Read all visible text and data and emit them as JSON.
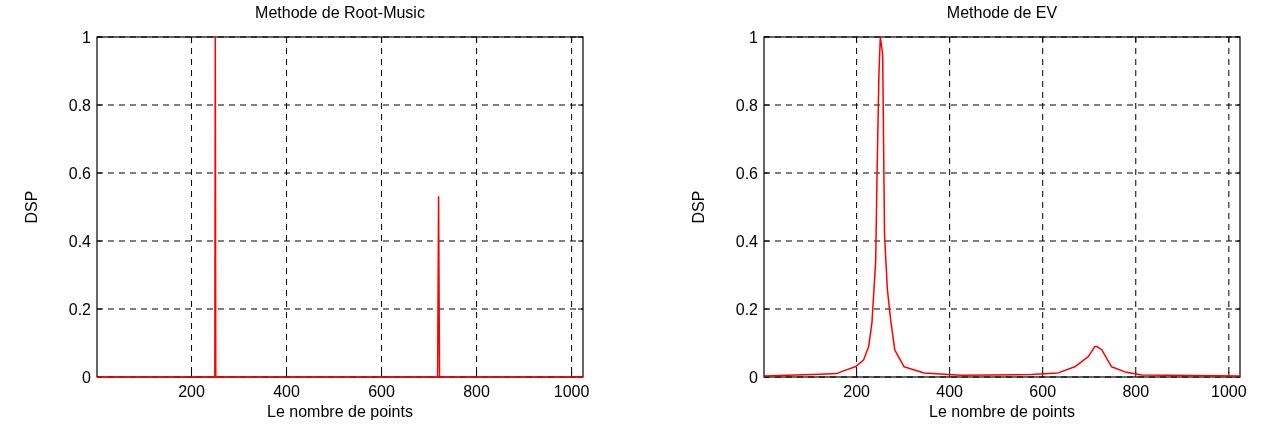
{
  "chart_data": [
    {
      "type": "line",
      "title": "Methode de Root-Music",
      "xlabel": "Le nombre de points",
      "ylabel": "DSP",
      "xlim": [
        1,
        1024
      ],
      "ylim": [
        0,
        1
      ],
      "xticks": [
        200,
        400,
        600,
        800,
        1000
      ],
      "yticks": [
        0,
        0.2,
        0.4,
        0.6,
        0.8,
        1
      ],
      "grid": true,
      "series": [
        {
          "color": "#ff0000",
          "x": [
            1,
            249,
            250,
            251,
            718,
            720,
            722,
            1024
          ],
          "values": [
            0,
            0,
            1,
            0,
            0,
            0.53,
            0,
            0
          ]
        }
      ]
    },
    {
      "type": "line",
      "title": "Methode de EV",
      "xlabel": "Le nombre de points",
      "ylabel": "DSP",
      "xlim": [
        1,
        1024
      ],
      "ylim": [
        0,
        1
      ],
      "xticks": [
        200,
        400,
        600,
        800,
        1000
      ],
      "yticks": [
        0,
        0.2,
        0.4,
        0.6,
        0.8,
        1
      ],
      "grid": true,
      "series": [
        {
          "color": "#ff0000",
          "x": [
            1,
            121,
            157,
            172,
            197,
            215,
            226,
            233,
            237,
            241,
            244,
            248,
            251,
            256,
            258,
            260,
            266,
            273,
            282,
            302,
            345,
            424,
            575,
            633,
            669,
            698,
            712,
            716,
            727,
            748,
            777,
            813,
            1024
          ],
          "values": [
            0.003,
            0.008,
            0.01,
            0.018,
            0.03,
            0.05,
            0.09,
            0.16,
            0.25,
            0.34,
            0.6,
            0.89,
            1,
            0.95,
            0.69,
            0.42,
            0.26,
            0.17,
            0.08,
            0.03,
            0.012,
            0.005,
            0.007,
            0.012,
            0.03,
            0.06,
            0.09,
            0.09,
            0.08,
            0.03,
            0.015,
            0.006,
            0.003
          ]
        }
      ]
    }
  ]
}
